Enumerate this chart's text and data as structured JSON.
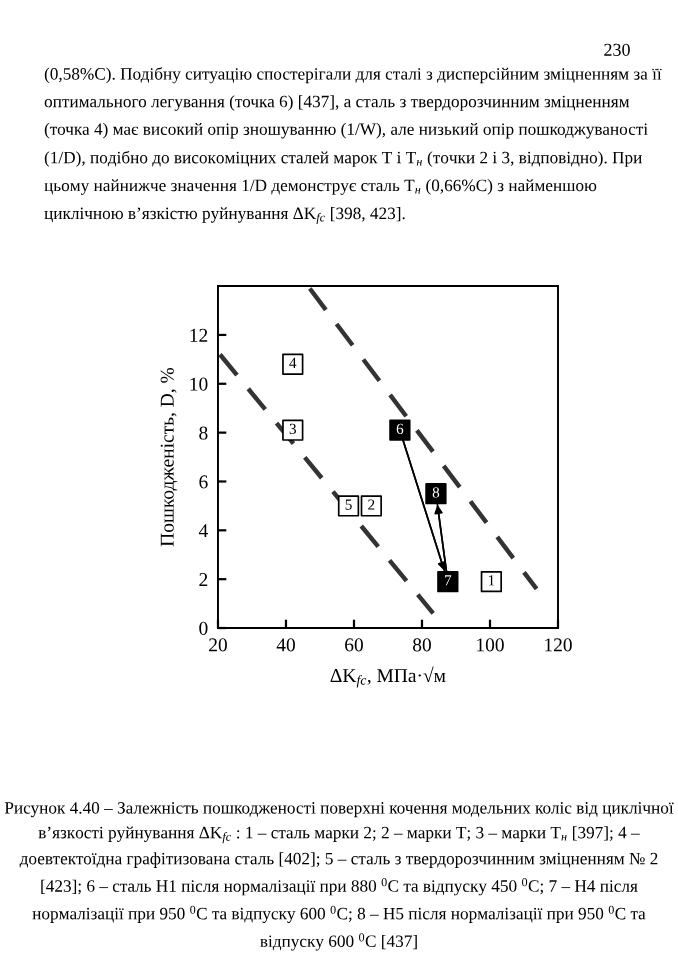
{
  "chart_data": {
    "type": "scatter",
    "xlabel": "ΔK$_{fc}$, МПа·√м",
    "ylabel": "Пошкодженість, D, %",
    "xlim": [
      20,
      120
    ],
    "ylim": [
      0,
      14
    ],
    "xticks": [
      20,
      40,
      60,
      80,
      100,
      120
    ],
    "yticks": [
      0,
      2,
      4,
      6,
      8,
      10,
      12
    ],
    "grid": false,
    "series": [
      {
        "marker": "square",
        "x": [
          100.4,
          65.1,
          42,
          42,
          58.4,
          73.5,
          87.6,
          84.1
        ],
        "values": [
          1.9,
          5.0,
          8.1,
          10.8,
          5.0,
          8.1,
          1.9,
          5.5
        ],
        "colors": [
          "#ffffff",
          "#ffffff",
          "#ffffff",
          "#ffffff",
          "#ffffff",
          "#000000",
          "#000000",
          "#000000"
        ]
      },
      {
        "type": "line",
        "x": [
          20.6,
          83.3
        ],
        "values": [
          11.2,
          0.6
        ],
        "color": "#333333",
        "line_style": "dashed",
        "marker": "none"
      },
      {
        "type": "line",
        "x": [
          47,
          113.7
        ],
        "values": [
          13.9,
          1.6
        ],
        "color": "#333333",
        "line_style": "dashed",
        "marker": "none"
      },
      {
        "type": "line",
        "x": [
          73.5,
          87.6
        ],
        "values": [
          8.1,
          1.9
        ],
        "color": "#000000",
        "line_style": "solid",
        "marker": "none"
      },
      {
        "type": "line",
        "x": [
          87.6,
          84.1
        ],
        "values": [
          1.9,
          5.5
        ],
        "color": "#000000",
        "line_style": "solid",
        "marker": "none"
      }
    ],
    "annotations": [
      "230",
      {
        "text": "1",
        "x": 100.4,
        "y": 1.9
      },
      {
        "text": "2",
        "x": 65.1,
        "y": 5.0
      },
      {
        "text": "3",
        "x": 42,
        "y": 8.1
      },
      {
        "text": "4",
        "x": 42,
        "y": 10.8
      },
      {
        "text": "5",
        "x": 58.4,
        "y": 5.0
      },
      {
        "text": "6",
        "x": 73.5,
        "y": 8.1
      },
      {
        "text": "7",
        "x": 87.6,
        "y": 1.9
      },
      {
        "text": "8",
        "x": 84.1,
        "y": 5.5
      },
      "(0,58%C). Подібну ситуацію спостерігали для сталі з дисперсійним зміцненням за її оптимального легування (точка 6) [437], а сталь з твердорозчинним зміцненням (точка 4) має високий опір зношуванню (1/W), але низький опір пошкоджуваності (1/D), подібно до високоміцних сталей марок Т і Т$_{н}$ (точки 2 і 3, відповідно). При цьому найнижче значення 1/D демонструє сталь Т$_{н}$ (0,66%C) з найменшою циклічною в’язкістю руйнування ΔK$_{fc}$ [398, 423].",
      "Рисунок 4.40 – Залежність пошкодженості поверхні кочення модельних коліс від циклічної в’язкості руйнування ΔK$_{fc}$ : 1 – сталь марки 2; 2 – марки Т; 3 – марки Т$_{н}$ [397]; 4 – доевтектоїдна графітизована сталь [402]; 5 – сталь з твердорозчинним зміцненням № 2 [423]; 6 – сталь Н1 після нормалізації при 880 $^{0}$C та відпуску 450 $^{0}$C; 7 – Н4 після нормалізації при 950 $^{0}$C та відпуску 600 $^{0}$C; 8 – Н5 після нормалізації при 950 $^{0}$C та відпуску 600 $^{0}$C [437]"
    ]
  }
}
